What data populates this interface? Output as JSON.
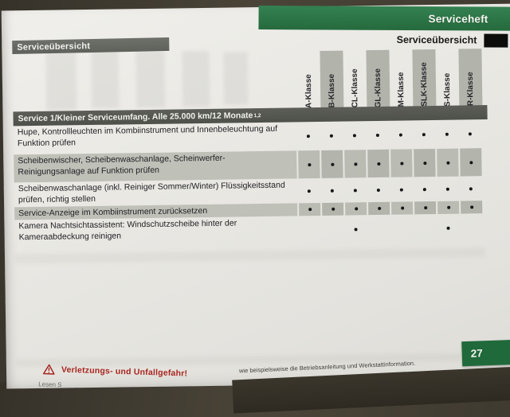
{
  "header": {
    "booklet_title": "Serviceheft",
    "section_title": "Serviceübersicht",
    "tab_label": "Serviceübersicht"
  },
  "table": {
    "title": "Service 1/Kleiner Serviceumfang. Alle 25.000 km/12 Monate",
    "title_superscript": "1,2",
    "columns": [
      "A-Klasse",
      "B-Klasse",
      "CL-Klasse",
      "GL-Klasse",
      "M-Klasse",
      "SLK-Klasse",
      "S-Klasse",
      "R-Klasse"
    ],
    "mark_glyph": "•",
    "rows": [
      {
        "label": "Hupe, Kontrollleuchten im Kombiinstrument und Innenbeleuchtung auf Funktion prüfen",
        "marks": [
          1,
          1,
          1,
          1,
          1,
          1,
          1,
          1
        ]
      },
      {
        "label": "Scheibenwischer, Scheibenwaschanlage, Scheinwerfer-Reinigungsanlage auf Funktion prüfen",
        "marks": [
          1,
          1,
          1,
          1,
          1,
          1,
          1,
          1
        ]
      },
      {
        "label": "Scheibenwaschanlage (inkl. Reiniger Sommer/Winter) Flüssigkeitsstand prüfen, richtig stellen",
        "marks": [
          1,
          1,
          1,
          1,
          1,
          1,
          1,
          1
        ]
      },
      {
        "label": "Service-Anzeige im Kombiinstrument zurücksetzen",
        "marks": [
          1,
          1,
          1,
          1,
          1,
          1,
          1,
          1
        ]
      },
      {
        "label": "Kamera Nachtsichtassistent: Windschutzscheibe hinter der Kameraabdeckung reinigen",
        "marks": [
          0,
          0,
          1,
          0,
          0,
          0,
          1,
          0
        ]
      }
    ]
  },
  "footer": {
    "warning_text": "Verletzungs- und Unfallgefahr!",
    "warning_partial_line": "Lesen S",
    "note_partial_line": "wie beispielsweise die Betriebsanleitung und Werkstattinformation.",
    "page_number": "27"
  },
  "colors": {
    "banner_green": "#2b7344",
    "page_number_green": "#20693a",
    "table_header_gray": "#55574f",
    "section_tab_gray": "#666861",
    "row_stripe_gray": "#bcbdb5",
    "column_band_gray": "#b2b4ac",
    "warning_red": "#a8241e"
  }
}
